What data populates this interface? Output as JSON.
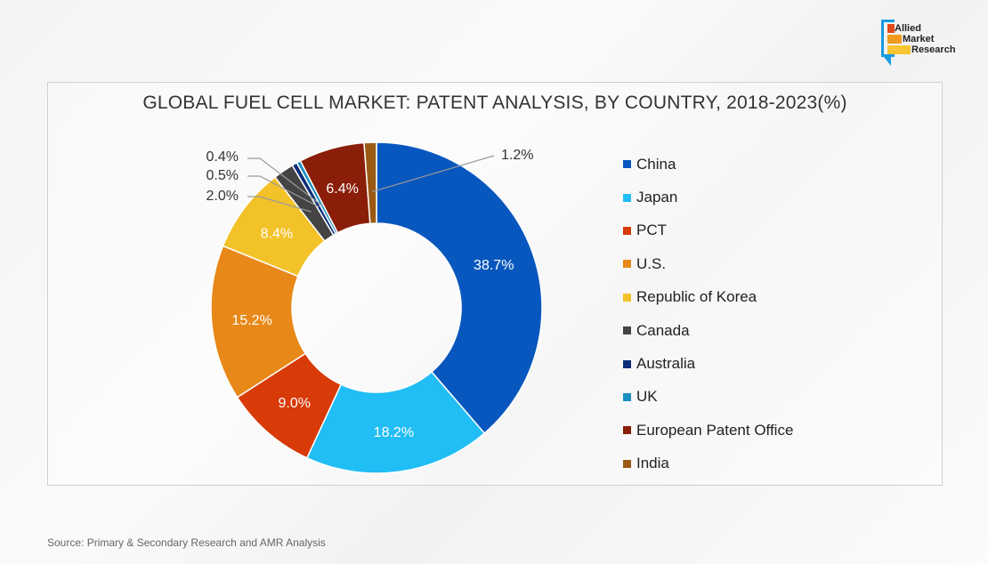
{
  "brand": {
    "logo_lines": [
      "Allied",
      "Market",
      "Research"
    ],
    "logo_colors": [
      "#e04a1c",
      "#f29a1f",
      "#f7c531"
    ],
    "frame_color": "#1a9ae0"
  },
  "footer": {
    "source": "Source: Primary & Secondary Research and AMR Analysis"
  },
  "chart_data": {
    "type": "pie",
    "variant": "donut",
    "title": "GLOBAL FUEL CELL MARKET: PATENT ANALYSIS, BY COUNTRY, 2018-2023(%)",
    "unit": "%",
    "legend_position": "right",
    "start": "top, clockwise",
    "categories": [
      "China",
      "Japan",
      "PCT",
      "U.S.",
      "Republic of Korea",
      "Canada",
      "Australia",
      "UK",
      "European Patent Office",
      "India"
    ],
    "values": [
      38.7,
      18.2,
      9.0,
      15.2,
      8.4,
      2.0,
      0.5,
      0.4,
      6.4,
      1.2
    ],
    "labels": [
      "38.7%",
      "18.2%",
      "9.0%",
      "15.2%",
      "8.4%",
      "2.0%",
      "0.5%",
      "0.4%",
      "6.4%",
      "1.2%"
    ],
    "colors": [
      "#0857be",
      "#21bdf5",
      "#d83a08",
      "#e88818",
      "#f3c228",
      "#444444",
      "#0b2d78",
      "#1a8fc0",
      "#8a1e08",
      "#9a5a14"
    ],
    "label_placement": [
      "inside",
      "inside",
      "inside",
      "inside",
      "inside",
      "callout",
      "callout",
      "callout",
      "inside",
      "callout"
    ]
  }
}
